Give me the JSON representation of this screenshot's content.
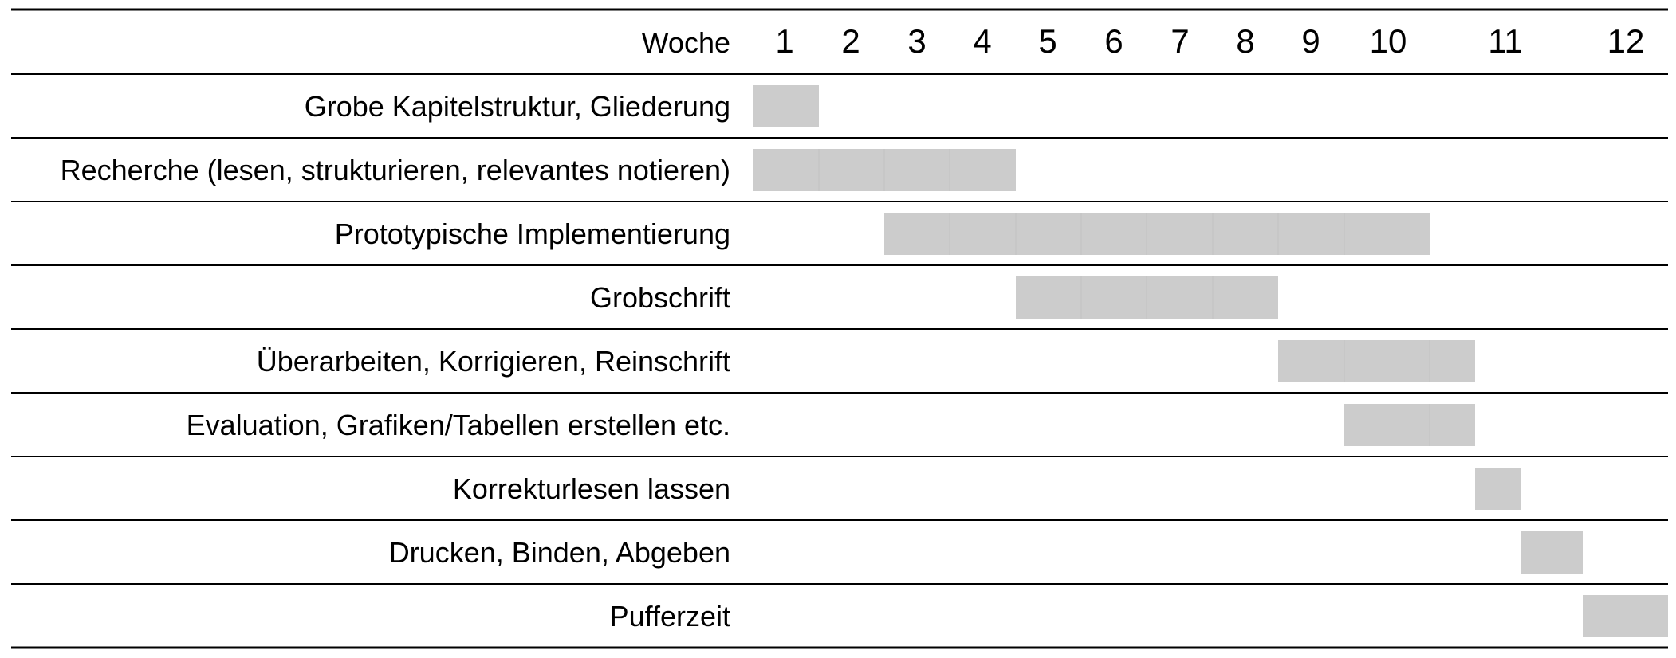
{
  "chart_data": {
    "type": "gantt",
    "header": "Woche",
    "weeks": [
      "1",
      "2",
      "3",
      "4",
      "5",
      "6",
      "7",
      "8",
      "9",
      "10",
      "11",
      "12"
    ],
    "bar_color": "#cccccc",
    "tasks": [
      {
        "label": "Grobe Kapitelstruktur, Gliederung",
        "start_week": 1,
        "end_week": 1
      },
      {
        "label": "Recherche (lesen, strukturieren, relevantes notieren)",
        "start_week": 1,
        "end_week": 4
      },
      {
        "label": "Prototypische Implementierung",
        "start_week": 3,
        "end_week": 10
      },
      {
        "label": "Grobschrift",
        "start_week": 5,
        "end_week": 8
      },
      {
        "label": "Überarbeiten, Korrigieren, Reinschrift",
        "start_week": 9,
        "end_week": 11
      },
      {
        "label": "Evaluation, Grafiken/Tabellen erstellen etc.",
        "start_week": 10,
        "end_week": 11
      },
      {
        "label": "Korrekturlesen lassen",
        "start_week": 11.5,
        "end_week": 11.5
      },
      {
        "label": "Drucken, Binden, Abgeben",
        "start_week": 12,
        "end_week": 12
      },
      {
        "label": "Pufferzeit",
        "start_week": 13,
        "end_week": 13
      }
    ]
  }
}
